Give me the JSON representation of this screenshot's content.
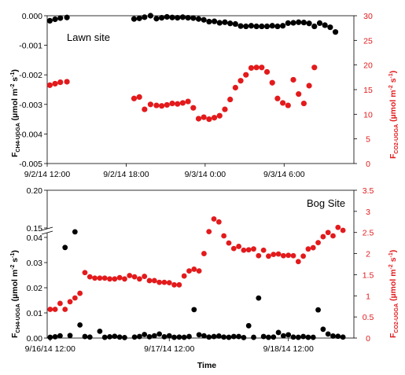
{
  "colors": {
    "ch4": "#000000",
    "co2": "#e31a1c"
  },
  "chart_data": [
    {
      "type": "scatter",
      "panel_label": "Lawn site",
      "x_tick_labels": [
        "9/2/14 12:00",
        "9/2/14 18:00",
        "9/3/14 0:00",
        "9/3/14 6:00"
      ],
      "y_left": {
        "label_main": "F",
        "label_sub": "CH4-UGGA",
        "label_units": " (µmol m",
        "label_sup": "-2",
        "label_s": " s",
        "label_sup2": "-1",
        "label_close": ")",
        "lim": [
          -0.005,
          0
        ],
        "ticks": [
          "0.000",
          "-0.001",
          "-0.002",
          "-0.003",
          "-0.004",
          "-0.005"
        ]
      },
      "y_right": {
        "label_main": "F",
        "label_sub": "CO2-UGGA",
        "label_units": " (µmol m",
        "label_sup": "-2",
        "label_s": " s",
        "label_sup2": "-1",
        "label_close": ")",
        "lim": [
          0,
          30
        ],
        "ticks": [
          "30",
          "25",
          "20",
          "15",
          "10",
          "5",
          "0"
        ]
      },
      "x_unit": "hours from 9/2/14 12:00",
      "xlim": [
        0,
        23.3
      ],
      "series": [
        {
          "axis": "left",
          "color": "#000000",
          "values": [
            [
              0.2,
              -0.00017
            ],
            [
              0.6,
              -0.00012
            ],
            [
              1.0,
              -8e-05
            ],
            [
              1.5,
              -6e-05
            ],
            [
              6.6,
              -0.00011
            ],
            [
              7.0,
              -9e-05
            ],
            [
              7.4,
              -5e-05
            ],
            [
              7.85,
              0.0
            ],
            [
              8.3,
              -0.0001
            ],
            [
              8.7,
              -7e-05
            ],
            [
              9.1,
              -4e-05
            ],
            [
              9.5,
              -6e-05
            ],
            [
              9.9,
              -7e-05
            ],
            [
              10.3,
              -5e-05
            ],
            [
              10.7,
              -7e-05
            ],
            [
              11.1,
              -8e-05
            ],
            [
              11.5,
              -0.00011
            ],
            [
              11.9,
              -0.00014
            ],
            [
              12.3,
              -0.0002
            ],
            [
              12.7,
              -0.00019
            ],
            [
              13.1,
              -0.00024
            ],
            [
              13.5,
              -0.00022
            ],
            [
              13.9,
              -0.00026
            ],
            [
              14.3,
              -0.00028
            ],
            [
              14.7,
              -0.00035
            ],
            [
              15.1,
              -0.00036
            ],
            [
              15.5,
              -0.00034
            ],
            [
              15.9,
              -0.00036
            ],
            [
              16.3,
              -0.00036
            ],
            [
              16.7,
              -0.00036
            ],
            [
              17.1,
              -0.00034
            ],
            [
              17.5,
              -0.00036
            ],
            [
              17.9,
              -0.00034
            ],
            [
              18.3,
              -0.00025
            ],
            [
              18.7,
              -0.00024
            ],
            [
              19.1,
              -0.00022
            ],
            [
              19.5,
              -0.00023
            ],
            [
              19.9,
              -0.00026
            ],
            [
              20.3,
              -0.00036
            ],
            [
              20.7,
              -0.00025
            ],
            [
              21.1,
              -0.00032
            ],
            [
              21.5,
              -0.00039
            ],
            [
              21.9,
              -0.00055
            ]
          ]
        },
        {
          "axis": "right",
          "color": "#e31a1c",
          "values": [
            [
              0.2,
              15.9
            ],
            [
              0.6,
              16.2
            ],
            [
              1.0,
              16.5
            ],
            [
              1.5,
              16.6
            ],
            [
              6.6,
              13.2
            ],
            [
              7.0,
              13.5
            ],
            [
              7.4,
              11.0
            ],
            [
              7.85,
              12.0
            ],
            [
              8.3,
              11.8
            ],
            [
              8.7,
              11.7
            ],
            [
              9.1,
              11.9
            ],
            [
              9.5,
              12.2
            ],
            [
              9.9,
              12.1
            ],
            [
              10.3,
              12.3
            ],
            [
              10.7,
              12.6
            ],
            [
              11.1,
              11.3
            ],
            [
              11.5,
              9.1
            ],
            [
              11.9,
              9.4
            ],
            [
              12.3,
              9.0
            ],
            [
              12.7,
              9.3
            ],
            [
              13.1,
              9.7
            ],
            [
              13.5,
              11.0
            ],
            [
              13.9,
              13.0
            ],
            [
              14.3,
              15.4
            ],
            [
              14.7,
              16.8
            ],
            [
              15.1,
              18.0
            ],
            [
              15.5,
              19.4
            ],
            [
              15.9,
              19.5
            ],
            [
              16.3,
              19.5
            ],
            [
              16.7,
              18.6
            ],
            [
              17.1,
              16.4
            ],
            [
              17.5,
              13.2
            ],
            [
              17.9,
              12.3
            ],
            [
              18.3,
              11.8
            ],
            [
              18.7,
              17.0
            ],
            [
              19.1,
              14.1
            ],
            [
              19.5,
              12.2
            ],
            [
              19.9,
              15.8
            ],
            [
              20.3,
              19.5
            ]
          ]
        }
      ]
    },
    {
      "type": "scatter",
      "panel_label": "Bog Site",
      "x_tick_labels": [
        "9/16/14 12:00",
        "9/17/14 12:00",
        "9/18/14 12:00"
      ],
      "x_title": "Time",
      "y_left": {
        "label_main": "F",
        "label_sub": "CH4-UGGA",
        "label_units": " (µmol m",
        "label_sup": "-2",
        "label_s": " s",
        "label_sup2": "-1",
        "label_close": ")",
        "lim": [
          0,
          0.2
        ],
        "axis_break": [
          0.04,
          0.15
        ],
        "ticks": [
          "0.20",
          "0.15",
          "0.04",
          "0.03",
          "0.02",
          "0.01",
          "0.00"
        ]
      },
      "y_right": {
        "label_main": "F",
        "label_sub": "CO2-UGGA",
        "label_units": " (µmol m",
        "label_sup": "-2",
        "label_s": " s",
        "label_sup2": "-1",
        "label_close": ")",
        "lim": [
          0,
          3.5
        ],
        "ticks": [
          "3.5",
          "3",
          "2.5",
          "2",
          "1.5",
          "1",
          "0.5",
          "0"
        ]
      },
      "x_unit": "hours from 9/16/14 12:00",
      "xlim": [
        -0.6,
        61.2
      ],
      "series": [
        {
          "axis": "left",
          "color": "#000000",
          "values": [
            [
              0.0,
              0.0003
            ],
            [
              1.0,
              0.0005
            ],
            [
              2.0,
              0.0009
            ],
            [
              3.0,
              0.036
            ],
            [
              4.0,
              0.001
            ],
            [
              5.0,
              0.105
            ],
            [
              6.0,
              0.0052
            ],
            [
              7.0,
              0.0006
            ],
            [
              8.0,
              0.0004
            ],
            [
              10.0,
              0.0027
            ],
            [
              11.0,
              0.0003
            ],
            [
              12.0,
              0.0005
            ],
            [
              13.0,
              0.0007
            ],
            [
              14.0,
              0.0004
            ],
            [
              15.0,
              0.0002
            ],
            [
              17.0,
              0.0004
            ],
            [
              18.0,
              0.0006
            ],
            [
              19.0,
              0.0014
            ],
            [
              20.0,
              0.0005
            ],
            [
              21.0,
              0.0009
            ],
            [
              22.0,
              0.0016
            ],
            [
              23.0,
              0.0005
            ],
            [
              24.0,
              0.0009
            ],
            [
              25.0,
              0.0003
            ],
            [
              26.0,
              0.0004
            ],
            [
              27.0,
              0.0003
            ],
            [
              28.0,
              0.0006
            ],
            [
              29.0,
              0.0113
            ],
            [
              30.0,
              0.0013
            ],
            [
              31.0,
              0.0009
            ],
            [
              32.0,
              0.0004
            ],
            [
              33.0,
              0.0006
            ],
            [
              34.0,
              0.0008
            ],
            [
              35.0,
              0.0004
            ],
            [
              36.0,
              0.0003
            ],
            [
              37.0,
              0.0006
            ],
            [
              38.0,
              0.0006
            ],
            [
              39.0,
              0.0002
            ],
            [
              40.0,
              0.0049
            ],
            [
              41.0,
              0.0003
            ],
            [
              42.0,
              0.0159
            ],
            [
              43.0,
              0.0006
            ],
            [
              44.0,
              0.0003
            ],
            [
              45.0,
              0.0004
            ],
            [
              46.0,
              0.0022
            ],
            [
              47.0,
              0.0009
            ],
            [
              48.0,
              0.0013
            ],
            [
              49.0,
              0.0004
            ],
            [
              50.0,
              0.0003
            ],
            [
              51.0,
              0.0006
            ],
            [
              52.0,
              0.0003
            ],
            [
              53.0,
              0.0003
            ],
            [
              54.0,
              0.0112
            ],
            [
              55.0,
              0.0035
            ],
            [
              56.0,
              0.0016
            ],
            [
              57.0,
              0.0008
            ],
            [
              58.0,
              0.0007
            ],
            [
              59.0,
              0.0004
            ]
          ]
        },
        {
          "axis": "right",
          "color": "#e31a1c",
          "values": [
            [
              0.0,
              0.68
            ],
            [
              1.0,
              0.68
            ],
            [
              2.0,
              0.82
            ],
            [
              3.0,
              0.68
            ],
            [
              4.0,
              0.86
            ],
            [
              5.0,
              0.95
            ],
            [
              6.0,
              1.06
            ],
            [
              7.0,
              1.55
            ],
            [
              8.0,
              1.45
            ],
            [
              9.0,
              1.42
            ],
            [
              10.0,
              1.42
            ],
            [
              11.0,
              1.42
            ],
            [
              12.0,
              1.4
            ],
            [
              13.0,
              1.4
            ],
            [
              14.0,
              1.43
            ],
            [
              15.0,
              1.4
            ],
            [
              16.0,
              1.48
            ],
            [
              17.0,
              1.45
            ],
            [
              18.0,
              1.4
            ],
            [
              19.0,
              1.46
            ],
            [
              20.0,
              1.36
            ],
            [
              21.0,
              1.36
            ],
            [
              22.0,
              1.32
            ],
            [
              23.0,
              1.32
            ],
            [
              24.0,
              1.31
            ],
            [
              25.0,
              1.26
            ],
            [
              26.0,
              1.26
            ],
            [
              27.0,
              1.47
            ],
            [
              28.0,
              1.59
            ],
            [
              29.0,
              1.63
            ],
            [
              30.0,
              1.59
            ],
            [
              31.0,
              2.0
            ],
            [
              32.0,
              2.52
            ],
            [
              33.0,
              2.82
            ],
            [
              34.0,
              2.75
            ],
            [
              35.0,
              2.42
            ],
            [
              36.0,
              2.25
            ],
            [
              37.0,
              2.12
            ],
            [
              38.0,
              2.17
            ],
            [
              39.0,
              2.08
            ],
            [
              40.0,
              2.09
            ],
            [
              41.0,
              2.11
            ],
            [
              42.0,
              1.95
            ],
            [
              43.0,
              2.08
            ],
            [
              44.0,
              1.94
            ],
            [
              45.0,
              1.98
            ],
            [
              46.0,
              1.99
            ],
            [
              47.0,
              1.95
            ],
            [
              48.0,
              1.96
            ],
            [
              49.0,
              1.95
            ],
            [
              50.0,
              1.81
            ],
            [
              51.0,
              1.94
            ],
            [
              52.0,
              2.11
            ],
            [
              53.0,
              2.14
            ],
            [
              54.0,
              2.26
            ],
            [
              55.0,
              2.4
            ],
            [
              56.0,
              2.5
            ],
            [
              57.0,
              2.42
            ],
            [
              58.0,
              2.62
            ],
            [
              59.0,
              2.55
            ]
          ]
        }
      ]
    }
  ]
}
